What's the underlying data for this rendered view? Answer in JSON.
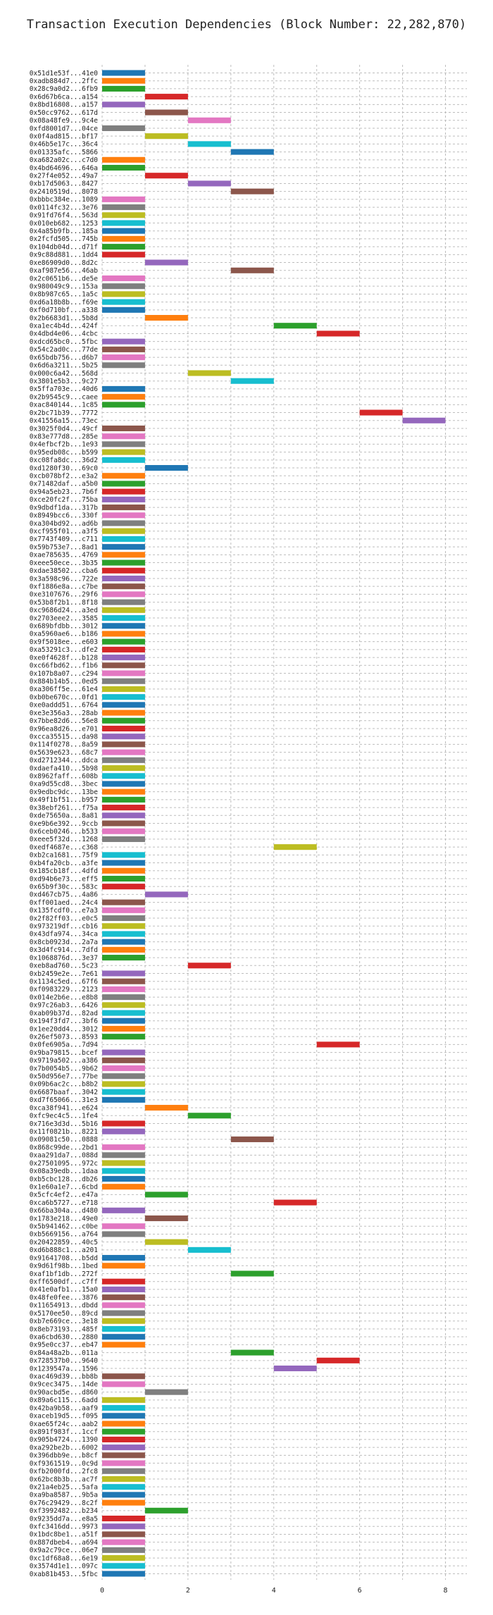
{
  "chart_data": {
    "type": "bar",
    "orientation": "horizontal-gantt",
    "title": "Transaction Execution Dependencies (Block Number: 22,282,870)",
    "xlabel": "",
    "ylabel": "",
    "xlim": [
      0,
      8.5
    ],
    "xticks": [
      0,
      2,
      4,
      6,
      8
    ],
    "grid": true,
    "palette": [
      "#1f77b4",
      "#ff7f0e",
      "#2ca02c",
      "#d62728",
      "#9467bd",
      "#8c564b",
      "#e377c2",
      "#7f7f7f",
      "#bcbd22",
      "#17becf"
    ],
    "transactions": [
      {
        "label": "0x51d1e53f...41e0",
        "start": 0,
        "end": 1
      },
      {
        "label": "0xadb884d7...2ffc",
        "start": 0,
        "end": 1
      },
      {
        "label": "0x28c9a0d2...6fb9",
        "start": 0,
        "end": 1
      },
      {
        "label": "0x6d67b6ca...a154",
        "start": 1,
        "end": 2
      },
      {
        "label": "0x8bd16808...a157",
        "start": 0,
        "end": 1
      },
      {
        "label": "0x50cc9762...617d",
        "start": 1,
        "end": 2
      },
      {
        "label": "0x08a48fe9...9c4e",
        "start": 2,
        "end": 3
      },
      {
        "label": "0xfd8001d7...04ce",
        "start": 0,
        "end": 1
      },
      {
        "label": "0x0f4ad815...bf17",
        "start": 1,
        "end": 2
      },
      {
        "label": "0x46b5e17c...36c4",
        "start": 2,
        "end": 3
      },
      {
        "label": "0x01335afc...5866",
        "start": 3,
        "end": 4
      },
      {
        "label": "0xa682a02c...c7d0",
        "start": 0,
        "end": 1
      },
      {
        "label": "0x4bd64696...646a",
        "start": 0,
        "end": 1
      },
      {
        "label": "0x27f4e052...49a7",
        "start": 1,
        "end": 2
      },
      {
        "label": "0xb17d5063...8427",
        "start": 2,
        "end": 3
      },
      {
        "label": "0x2410519d...8078",
        "start": 3,
        "end": 4
      },
      {
        "label": "0xbbbc384e...1089",
        "start": 0,
        "end": 1
      },
      {
        "label": "0x0114fc32...3e76",
        "start": 0,
        "end": 1
      },
      {
        "label": "0x91fd76f4...563d",
        "start": 0,
        "end": 1
      },
      {
        "label": "0x010eb682...1253",
        "start": 0,
        "end": 1
      },
      {
        "label": "0x4a85b9fb...185a",
        "start": 0,
        "end": 1
      },
      {
        "label": "0x2fcfd505...745b",
        "start": 0,
        "end": 1
      },
      {
        "label": "0x104db04d...d71f",
        "start": 0,
        "end": 1
      },
      {
        "label": "0x9c88d881...1dd4",
        "start": 0,
        "end": 1
      },
      {
        "label": "0xe86909d0...8d2c",
        "start": 1,
        "end": 2
      },
      {
        "label": "0xaf987e56...46ab",
        "start": 3,
        "end": 4
      },
      {
        "label": "0x2c0651b6...de5e",
        "start": 0,
        "end": 1
      },
      {
        "label": "0x980049c9...153a",
        "start": 0,
        "end": 1
      },
      {
        "label": "0x8b987c65...1a5c",
        "start": 0,
        "end": 1
      },
      {
        "label": "0xd6a18b8b...f69e",
        "start": 0,
        "end": 1
      },
      {
        "label": "0xf0d710bf...a338",
        "start": 0,
        "end": 1
      },
      {
        "label": "0x2b6683d1...5b8d",
        "start": 1,
        "end": 2
      },
      {
        "label": "0xa1ec4b4d...424f",
        "start": 4,
        "end": 5
      },
      {
        "label": "0x4dbd4e06...4cbc",
        "start": 5,
        "end": 6
      },
      {
        "label": "0xdcd65bc0...5fbc",
        "start": 0,
        "end": 1
      },
      {
        "label": "0x54c2ad0c...77de",
        "start": 0,
        "end": 1
      },
      {
        "label": "0x65bdb756...d6b7",
        "start": 0,
        "end": 1
      },
      {
        "label": "0x6d6a3211...5b25",
        "start": 0,
        "end": 1
      },
      {
        "label": "0x000c6a42...568d",
        "start": 2,
        "end": 3
      },
      {
        "label": "0x3801e5b3...9c27",
        "start": 3,
        "end": 4
      },
      {
        "label": "0x5ffa703e...40d6",
        "start": 0,
        "end": 1
      },
      {
        "label": "0x2b9545c9...caee",
        "start": 0,
        "end": 1
      },
      {
        "label": "0xac840144...1c85",
        "start": 0,
        "end": 1
      },
      {
        "label": "0x2bc71b39...7772",
        "start": 6,
        "end": 7
      },
      {
        "label": "0x41556a15...73ec",
        "start": 7,
        "end": 8
      },
      {
        "label": "0x3025f0d4...49cf",
        "start": 0,
        "end": 1
      },
      {
        "label": "0x83e777d8...285e",
        "start": 0,
        "end": 1
      },
      {
        "label": "0x4efbcf2b...1e93",
        "start": 0,
        "end": 1
      },
      {
        "label": "0x95edb08c...b599",
        "start": 0,
        "end": 1
      },
      {
        "label": "0xc08fa8dc...36d2",
        "start": 0,
        "end": 1
      },
      {
        "label": "0xd1280f30...69c0",
        "start": 1,
        "end": 2
      },
      {
        "label": "0xcb078bf2...e3a2",
        "start": 0,
        "end": 1
      },
      {
        "label": "0x71482daf...a5b0",
        "start": 0,
        "end": 1
      },
      {
        "label": "0x94a5eb23...7b6f",
        "start": 0,
        "end": 1
      },
      {
        "label": "0xce20fc2f...75ba",
        "start": 0,
        "end": 1
      },
      {
        "label": "0x9dbdf1da...317b",
        "start": 0,
        "end": 1
      },
      {
        "label": "0x8949bcc6...330f",
        "start": 0,
        "end": 1
      },
      {
        "label": "0xa304bd92...ad6b",
        "start": 0,
        "end": 1
      },
      {
        "label": "0xcf955f01...a3f5",
        "start": 0,
        "end": 1
      },
      {
        "label": "0x7743f409...c711",
        "start": 0,
        "end": 1
      },
      {
        "label": "0x59b753e7...8ad1",
        "start": 0,
        "end": 1
      },
      {
        "label": "0xae785635...4769",
        "start": 0,
        "end": 1
      },
      {
        "label": "0xeee50ece...3b35",
        "start": 0,
        "end": 1
      },
      {
        "label": "0xdae38502...cba6",
        "start": 0,
        "end": 1
      },
      {
        "label": "0x3a598c96...722e",
        "start": 0,
        "end": 1
      },
      {
        "label": "0xf1886e8a...c7be",
        "start": 0,
        "end": 1
      },
      {
        "label": "0xe3107676...29f6",
        "start": 0,
        "end": 1
      },
      {
        "label": "0x53b8f2b1...8f18",
        "start": 0,
        "end": 1
      },
      {
        "label": "0xc9686d24...a3ed",
        "start": 0,
        "end": 1
      },
      {
        "label": "0x2703eee2...3585",
        "start": 0,
        "end": 1
      },
      {
        "label": "0x689bfdbb...3012",
        "start": 0,
        "end": 1
      },
      {
        "label": "0xa5960ae6...b186",
        "start": 0,
        "end": 1
      },
      {
        "label": "0x9f5018ee...e603",
        "start": 0,
        "end": 1
      },
      {
        "label": "0xa53291c3...dfe2",
        "start": 0,
        "end": 1
      },
      {
        "label": "0xe0f4628f...b128",
        "start": 0,
        "end": 1
      },
      {
        "label": "0xc66fbd62...f1b6",
        "start": 0,
        "end": 1
      },
      {
        "label": "0x107b8a07...c294",
        "start": 0,
        "end": 1
      },
      {
        "label": "0x884b14b5...0ed5",
        "start": 0,
        "end": 1
      },
      {
        "label": "0xa306ff5e...61e4",
        "start": 0,
        "end": 1
      },
      {
        "label": "0xb0be670c...0fd1",
        "start": 0,
        "end": 1
      },
      {
        "label": "0xe0addd51...6764",
        "start": 0,
        "end": 1
      },
      {
        "label": "0xe3e356a3...28ab",
        "start": 0,
        "end": 1
      },
      {
        "label": "0x7bbe82d6...56e8",
        "start": 0,
        "end": 1
      },
      {
        "label": "0x96ea8d26...e701",
        "start": 0,
        "end": 1
      },
      {
        "label": "0xcca35515...da98",
        "start": 0,
        "end": 1
      },
      {
        "label": "0x114f0278...8a59",
        "start": 0,
        "end": 1
      },
      {
        "label": "0x5639e623...68c7",
        "start": 0,
        "end": 1
      },
      {
        "label": "0xd2712344...ddca",
        "start": 0,
        "end": 1
      },
      {
        "label": "0xdaefa410...5b98",
        "start": 0,
        "end": 1
      },
      {
        "label": "0x8962faff...608b",
        "start": 0,
        "end": 1
      },
      {
        "label": "0xa9d55cd8...3bec",
        "start": 0,
        "end": 1
      },
      {
        "label": "0x9edbc9dc...13be",
        "start": 0,
        "end": 1
      },
      {
        "label": "0x49f1bf51...b957",
        "start": 0,
        "end": 1
      },
      {
        "label": "0x38ebf261...f75a",
        "start": 0,
        "end": 1
      },
      {
        "label": "0xde75650a...8a81",
        "start": 0,
        "end": 1
      },
      {
        "label": "0xe9b6e392...9ccb",
        "start": 0,
        "end": 1
      },
      {
        "label": "0x6ceb0246...b533",
        "start": 0,
        "end": 1
      },
      {
        "label": "0xeee5f32d...1268",
        "start": 0,
        "end": 1
      },
      {
        "label": "0xedf4687e...c368",
        "start": 4,
        "end": 5
      },
      {
        "label": "0xb2ca1681...75f9",
        "start": 0,
        "end": 1
      },
      {
        "label": "0xb4fa20cb...a3fe",
        "start": 0,
        "end": 1
      },
      {
        "label": "0x185cb18f...4dfd",
        "start": 0,
        "end": 1
      },
      {
        "label": "0xd94b6e73...eff5",
        "start": 0,
        "end": 1
      },
      {
        "label": "0x65b9f30c...583c",
        "start": 0,
        "end": 1
      },
      {
        "label": "0xd467cb75...4a86",
        "start": 1,
        "end": 2
      },
      {
        "label": "0xff001aed...24c4",
        "start": 0,
        "end": 1
      },
      {
        "label": "0x135fcdf0...e7a3",
        "start": 0,
        "end": 1
      },
      {
        "label": "0x2f82ff03...e0c5",
        "start": 0,
        "end": 1
      },
      {
        "label": "0x973219df...cb16",
        "start": 0,
        "end": 1
      },
      {
        "label": "0x43dfa974...34ca",
        "start": 0,
        "end": 1
      },
      {
        "label": "0x8cb0923d...2a7a",
        "start": 0,
        "end": 1
      },
      {
        "label": "0x3d4fc914...7dfd",
        "start": 0,
        "end": 1
      },
      {
        "label": "0x1068876d...3e37",
        "start": 0,
        "end": 1
      },
      {
        "label": "0xeb8ad760...5c23",
        "start": 2,
        "end": 3
      },
      {
        "label": "0xb2459e2e...7e61",
        "start": 0,
        "end": 1
      },
      {
        "label": "0x1134c5ed...67f6",
        "start": 0,
        "end": 1
      },
      {
        "label": "0xf0983229...2123",
        "start": 0,
        "end": 1
      },
      {
        "label": "0x014e2b6e...e8b8",
        "start": 0,
        "end": 1
      },
      {
        "label": "0x97c26ab3...6426",
        "start": 0,
        "end": 1
      },
      {
        "label": "0xab09b37d...82ad",
        "start": 0,
        "end": 1
      },
      {
        "label": "0x194f3fd7...3bf6",
        "start": 0,
        "end": 1
      },
      {
        "label": "0x1ee20dd4...3012",
        "start": 0,
        "end": 1
      },
      {
        "label": "0x26ef5073...8593",
        "start": 0,
        "end": 1
      },
      {
        "label": "0x0fe6905a...7d94",
        "start": 5,
        "end": 6
      },
      {
        "label": "0x9ba79815...bcef",
        "start": 0,
        "end": 1
      },
      {
        "label": "0x9719a502...a386",
        "start": 0,
        "end": 1
      },
      {
        "label": "0x7b0054b5...9b62",
        "start": 0,
        "end": 1
      },
      {
        "label": "0x50d956e7...77be",
        "start": 0,
        "end": 1
      },
      {
        "label": "0x09b6ac2c...b8b2",
        "start": 0,
        "end": 1
      },
      {
        "label": "0x6687baaf...3042",
        "start": 0,
        "end": 1
      },
      {
        "label": "0xd7f65066...31e3",
        "start": 0,
        "end": 1
      },
      {
        "label": "0xca38f941...e624",
        "start": 1,
        "end": 2
      },
      {
        "label": "0xfc9ec4c5...1fe4",
        "start": 2,
        "end": 3
      },
      {
        "label": "0x716e3d3d...5b16",
        "start": 0,
        "end": 1
      },
      {
        "label": "0x11f0821b...8221",
        "start": 0,
        "end": 1
      },
      {
        "label": "0x09081c50...0888",
        "start": 3,
        "end": 4
      },
      {
        "label": "0x868c99de...2bd1",
        "start": 0,
        "end": 1
      },
      {
        "label": "0xaa291da7...088d",
        "start": 0,
        "end": 1
      },
      {
        "label": "0x27501095...972c",
        "start": 0,
        "end": 1
      },
      {
        "label": "0x08a39edb...1daa",
        "start": 0,
        "end": 1
      },
      {
        "label": "0xb5cbc128...db26",
        "start": 0,
        "end": 1
      },
      {
        "label": "0x1e60a1e7...6cbd",
        "start": 0,
        "end": 1
      },
      {
        "label": "0x5cfc4ef2...e47a",
        "start": 1,
        "end": 2
      },
      {
        "label": "0xca6b5727...e718",
        "start": 4,
        "end": 5
      },
      {
        "label": "0x66ba304a...d480",
        "start": 0,
        "end": 1
      },
      {
        "label": "0x1783e218...49e0",
        "start": 1,
        "end": 2
      },
      {
        "label": "0x5b941462...c0be",
        "start": 0,
        "end": 1
      },
      {
        "label": "0xb5669156...a764",
        "start": 0,
        "end": 1
      },
      {
        "label": "0x20422859...40c5",
        "start": 1,
        "end": 2
      },
      {
        "label": "0xd6b888c1...a201",
        "start": 2,
        "end": 3
      },
      {
        "label": "0x91641708...b5dd",
        "start": 0,
        "end": 1
      },
      {
        "label": "0x9d61f98b...1bed",
        "start": 0,
        "end": 1
      },
      {
        "label": "0xaf1bf1db...272f",
        "start": 3,
        "end": 4
      },
      {
        "label": "0xff6500df...c7ff",
        "start": 0,
        "end": 1
      },
      {
        "label": "0x41e0afb1...15a0",
        "start": 0,
        "end": 1
      },
      {
        "label": "0x48fe0fee...3876",
        "start": 0,
        "end": 1
      },
      {
        "label": "0x11654913...dbdd",
        "start": 0,
        "end": 1
      },
      {
        "label": "0x5170ee50...89cd",
        "start": 0,
        "end": 1
      },
      {
        "label": "0xb7e669ce...3e18",
        "start": 0,
        "end": 1
      },
      {
        "label": "0x8eb73193...485f",
        "start": 0,
        "end": 1
      },
      {
        "label": "0xa6cbd630...2880",
        "start": 0,
        "end": 1
      },
      {
        "label": "0x95e0cc37...eb47",
        "start": 0,
        "end": 1
      },
      {
        "label": "0x84a48a2b...011a",
        "start": 3,
        "end": 4
      },
      {
        "label": "0x728537b0...9640",
        "start": 5,
        "end": 6
      },
      {
        "label": "0x1239547a...1596",
        "start": 4,
        "end": 5
      },
      {
        "label": "0xac469d39...bb8b",
        "start": 0,
        "end": 1
      },
      {
        "label": "0x9cec3475...14de",
        "start": 0,
        "end": 1
      },
      {
        "label": "0x90acbd5e...d860",
        "start": 1,
        "end": 2
      },
      {
        "label": "0x89a6c115...6add",
        "start": 0,
        "end": 1
      },
      {
        "label": "0x42ba9b58...aaf9",
        "start": 0,
        "end": 1
      },
      {
        "label": "0xaceb19d5...f095",
        "start": 0,
        "end": 1
      },
      {
        "label": "0xae65f24c...aab2",
        "start": 0,
        "end": 1
      },
      {
        "label": "0x891f983f...1ccf",
        "start": 0,
        "end": 1
      },
      {
        "label": "0x905b4724...1390",
        "start": 0,
        "end": 1
      },
      {
        "label": "0xa292be2b...6002",
        "start": 0,
        "end": 1
      },
      {
        "label": "0x396dbb9e...b8cf",
        "start": 0,
        "end": 1
      },
      {
        "label": "0xf9361519...0c9d",
        "start": 0,
        "end": 1
      },
      {
        "label": "0xfb2000fd...2fc8",
        "start": 0,
        "end": 1
      },
      {
        "label": "0x62bc8b3b...ac7f",
        "start": 0,
        "end": 1
      },
      {
        "label": "0x21a4eb25...5afa",
        "start": 0,
        "end": 1
      },
      {
        "label": "0xa9ba8587...9b5a",
        "start": 0,
        "end": 1
      },
      {
        "label": "0x76c29429...8c2f",
        "start": 0,
        "end": 1
      },
      {
        "label": "0xf3992482...b234",
        "start": 1,
        "end": 2
      },
      {
        "label": "0x9235dd7a...e8a5",
        "start": 0,
        "end": 1
      },
      {
        "label": "0xfc3416dd...9973",
        "start": 0,
        "end": 1
      },
      {
        "label": "0x1bdc8be1...a51f",
        "start": 0,
        "end": 1
      },
      {
        "label": "0x887dbeb4...a694",
        "start": 0,
        "end": 1
      },
      {
        "label": "0x9a2c79ce...06e7",
        "start": 0,
        "end": 1
      },
      {
        "label": "0xc1df68a8...6e19",
        "start": 0,
        "end": 1
      },
      {
        "label": "0x3574d1e1...097c",
        "start": 0,
        "end": 1
      },
      {
        "label": "0xab81b453...5fbc",
        "start": 0,
        "end": 1
      }
    ]
  }
}
